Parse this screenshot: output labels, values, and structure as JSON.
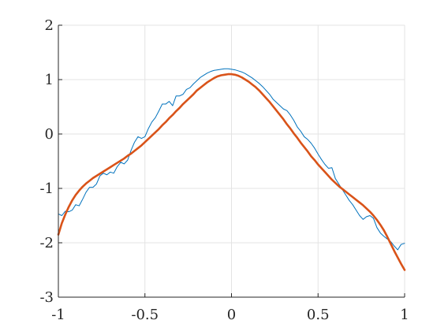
{
  "chart_data": {
    "type": "line",
    "title": "",
    "xlabel": "",
    "ylabel": "",
    "xlim": [
      -1,
      1
    ],
    "ylim": [
      -3,
      2
    ],
    "x_ticks": [
      -1,
      -0.5,
      0,
      0.5,
      1
    ],
    "x_tick_labels": [
      "-1",
      "-0.5",
      "0",
      "0.5",
      "1"
    ],
    "y_ticks": [
      -3,
      -2,
      -1,
      0,
      1,
      2
    ],
    "y_tick_labels": [
      "-3",
      "-2",
      "-1",
      "0",
      "1",
      "2"
    ],
    "grid": true,
    "legend": "none",
    "series": [
      {
        "color": "#0072BD",
        "line_width": "thin",
        "points": [
          [
            -1.0,
            -1.47
          ],
          [
            -0.98,
            -1.5
          ],
          [
            -0.96,
            -1.42
          ],
          [
            -0.94,
            -1.43
          ],
          [
            -0.92,
            -1.4
          ],
          [
            -0.9,
            -1.3
          ],
          [
            -0.88,
            -1.32
          ],
          [
            -0.86,
            -1.2
          ],
          [
            -0.84,
            -1.07
          ],
          [
            -0.82,
            -0.98
          ],
          [
            -0.8,
            -0.98
          ],
          [
            -0.78,
            -0.92
          ],
          [
            -0.76,
            -0.77
          ],
          [
            -0.74,
            -0.72
          ],
          [
            -0.72,
            -0.75
          ],
          [
            -0.7,
            -0.7
          ],
          [
            -0.68,
            -0.72
          ],
          [
            -0.66,
            -0.6
          ],
          [
            -0.64,
            -0.52
          ],
          [
            -0.62,
            -0.55
          ],
          [
            -0.6,
            -0.48
          ],
          [
            -0.58,
            -0.3
          ],
          [
            -0.56,
            -0.15
          ],
          [
            -0.54,
            -0.05
          ],
          [
            -0.52,
            -0.08
          ],
          [
            -0.5,
            -0.05
          ],
          [
            -0.48,
            0.1
          ],
          [
            -0.46,
            0.22
          ],
          [
            -0.44,
            0.3
          ],
          [
            -0.42,
            0.42
          ],
          [
            -0.4,
            0.55
          ],
          [
            -0.38,
            0.55
          ],
          [
            -0.36,
            0.6
          ],
          [
            -0.34,
            0.52
          ],
          [
            -0.32,
            0.7
          ],
          [
            -0.3,
            0.7
          ],
          [
            -0.28,
            0.73
          ],
          [
            -0.26,
            0.82
          ],
          [
            -0.24,
            0.85
          ],
          [
            -0.22,
            0.92
          ],
          [
            -0.2,
            0.98
          ],
          [
            -0.18,
            1.04
          ],
          [
            -0.16,
            1.08
          ],
          [
            -0.14,
            1.12
          ],
          [
            -0.12,
            1.15
          ],
          [
            -0.1,
            1.17
          ],
          [
            -0.08,
            1.18
          ],
          [
            -0.06,
            1.19
          ],
          [
            -0.04,
            1.2
          ],
          [
            -0.02,
            1.2
          ],
          [
            0.0,
            1.19
          ],
          [
            0.02,
            1.18
          ],
          [
            0.04,
            1.16
          ],
          [
            0.06,
            1.14
          ],
          [
            0.08,
            1.11
          ],
          [
            0.1,
            1.07
          ],
          [
            0.12,
            1.03
          ],
          [
            0.14,
            0.98
          ],
          [
            0.16,
            0.93
          ],
          [
            0.18,
            0.87
          ],
          [
            0.2,
            0.8
          ],
          [
            0.22,
            0.73
          ],
          [
            0.24,
            0.64
          ],
          [
            0.26,
            0.58
          ],
          [
            0.28,
            0.52
          ],
          [
            0.3,
            0.46
          ],
          [
            0.32,
            0.43
          ],
          [
            0.34,
            0.35
          ],
          [
            0.36,
            0.25
          ],
          [
            0.38,
            0.13
          ],
          [
            0.4,
            0.05
          ],
          [
            0.42,
            -0.05
          ],
          [
            0.44,
            -0.1
          ],
          [
            0.46,
            -0.17
          ],
          [
            0.48,
            -0.26
          ],
          [
            0.5,
            -0.37
          ],
          [
            0.52,
            -0.47
          ],
          [
            0.54,
            -0.56
          ],
          [
            0.56,
            -0.63
          ],
          [
            0.58,
            -0.62
          ],
          [
            0.6,
            -0.82
          ],
          [
            0.62,
            -0.92
          ],
          [
            0.64,
            -1.02
          ],
          [
            0.66,
            -1.12
          ],
          [
            0.68,
            -1.22
          ],
          [
            0.7,
            -1.3
          ],
          [
            0.72,
            -1.4
          ],
          [
            0.74,
            -1.5
          ],
          [
            0.76,
            -1.57
          ],
          [
            0.78,
            -1.52
          ],
          [
            0.8,
            -1.5
          ],
          [
            0.82,
            -1.55
          ],
          [
            0.84,
            -1.72
          ],
          [
            0.86,
            -1.82
          ],
          [
            0.88,
            -1.88
          ],
          [
            0.9,
            -1.93
          ],
          [
            0.92,
            -1.98
          ],
          [
            0.94,
            -2.06
          ],
          [
            0.96,
            -2.13
          ],
          [
            0.98,
            -2.03
          ],
          [
            1.0,
            -2.01
          ]
        ]
      },
      {
        "color": "#D95319",
        "line_width": "thick",
        "points": [
          [
            -1.0,
            -1.85
          ],
          [
            -0.98,
            -1.64
          ],
          [
            -0.96,
            -1.48
          ],
          [
            -0.94,
            -1.34
          ],
          [
            -0.92,
            -1.22
          ],
          [
            -0.9,
            -1.12
          ],
          [
            -0.88,
            -1.04
          ],
          [
            -0.86,
            -0.97
          ],
          [
            -0.84,
            -0.91
          ],
          [
            -0.82,
            -0.86
          ],
          [
            -0.8,
            -0.81
          ],
          [
            -0.78,
            -0.77
          ],
          [
            -0.76,
            -0.73
          ],
          [
            -0.74,
            -0.69
          ],
          [
            -0.72,
            -0.65
          ],
          [
            -0.7,
            -0.61
          ],
          [
            -0.68,
            -0.57
          ],
          [
            -0.66,
            -0.53
          ],
          [
            -0.64,
            -0.49
          ],
          [
            -0.62,
            -0.45
          ],
          [
            -0.6,
            -0.4
          ],
          [
            -0.58,
            -0.36
          ],
          [
            -0.56,
            -0.31
          ],
          [
            -0.54,
            -0.26
          ],
          [
            -0.52,
            -0.21
          ],
          [
            -0.5,
            -0.15
          ],
          [
            -0.48,
            -0.09
          ],
          [
            -0.46,
            -0.03
          ],
          [
            -0.44,
            0.03
          ],
          [
            -0.42,
            0.09
          ],
          [
            -0.4,
            0.16
          ],
          [
            -0.38,
            0.22
          ],
          [
            -0.36,
            0.29
          ],
          [
            -0.34,
            0.35
          ],
          [
            -0.32,
            0.42
          ],
          [
            -0.3,
            0.48
          ],
          [
            -0.28,
            0.55
          ],
          [
            -0.26,
            0.61
          ],
          [
            -0.24,
            0.67
          ],
          [
            -0.22,
            0.73
          ],
          [
            -0.2,
            0.8
          ],
          [
            -0.18,
            0.85
          ],
          [
            -0.16,
            0.9
          ],
          [
            -0.14,
            0.95
          ],
          [
            -0.12,
            0.99
          ],
          [
            -0.1,
            1.03
          ],
          [
            -0.08,
            1.06
          ],
          [
            -0.06,
            1.08
          ],
          [
            -0.04,
            1.09
          ],
          [
            -0.02,
            1.1
          ],
          [
            0.0,
            1.1
          ],
          [
            0.02,
            1.09
          ],
          [
            0.04,
            1.07
          ],
          [
            0.06,
            1.04
          ],
          [
            0.08,
            1.0
          ],
          [
            0.1,
            0.96
          ],
          [
            0.12,
            0.91
          ],
          [
            0.14,
            0.86
          ],
          [
            0.16,
            0.8
          ],
          [
            0.18,
            0.73
          ],
          [
            0.2,
            0.66
          ],
          [
            0.22,
            0.59
          ],
          [
            0.24,
            0.51
          ],
          [
            0.26,
            0.43
          ],
          [
            0.28,
            0.35
          ],
          [
            0.3,
            0.27
          ],
          [
            0.32,
            0.18
          ],
          [
            0.34,
            0.1
          ],
          [
            0.36,
            0.01
          ],
          [
            0.38,
            -0.07
          ],
          [
            0.4,
            -0.16
          ],
          [
            0.42,
            -0.24
          ],
          [
            0.44,
            -0.32
          ],
          [
            0.46,
            -0.41
          ],
          [
            0.48,
            -0.48
          ],
          [
            0.5,
            -0.56
          ],
          [
            0.52,
            -0.63
          ],
          [
            0.54,
            -0.7
          ],
          [
            0.56,
            -0.77
          ],
          [
            0.58,
            -0.84
          ],
          [
            0.6,
            -0.9
          ],
          [
            0.62,
            -0.96
          ],
          [
            0.64,
            -1.01
          ],
          [
            0.66,
            -1.06
          ],
          [
            0.68,
            -1.11
          ],
          [
            0.7,
            -1.16
          ],
          [
            0.72,
            -1.21
          ],
          [
            0.74,
            -1.26
          ],
          [
            0.76,
            -1.31
          ],
          [
            0.78,
            -1.37
          ],
          [
            0.8,
            -1.43
          ],
          [
            0.82,
            -1.5
          ],
          [
            0.84,
            -1.58
          ],
          [
            0.86,
            -1.67
          ],
          [
            0.88,
            -1.77
          ],
          [
            0.9,
            -1.89
          ],
          [
            0.92,
            -2.02
          ],
          [
            0.94,
            -2.15
          ],
          [
            0.96,
            -2.27
          ],
          [
            0.98,
            -2.39
          ],
          [
            1.0,
            -2.5
          ]
        ]
      }
    ]
  }
}
